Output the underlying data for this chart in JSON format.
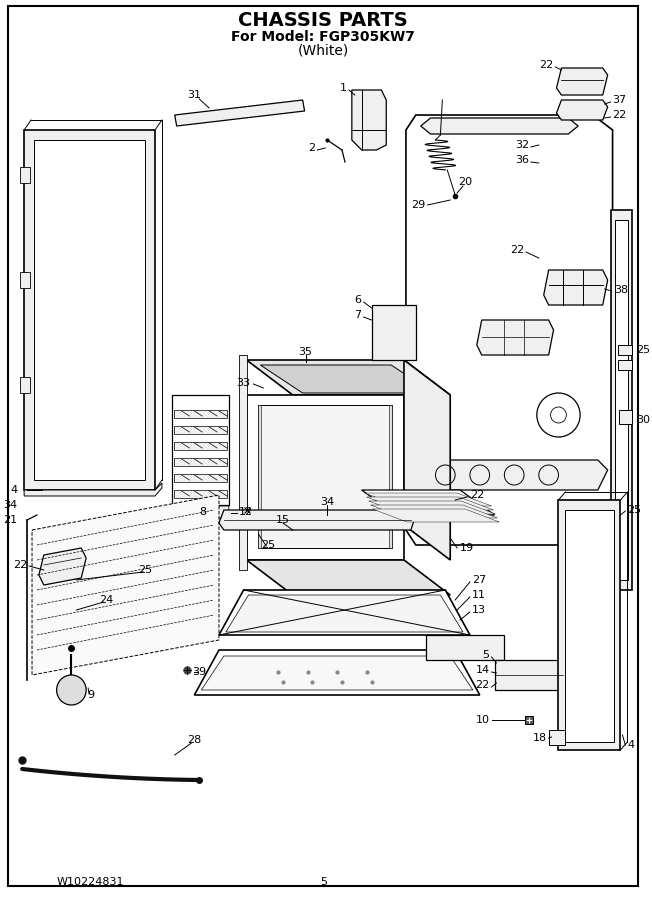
{
  "title_line1": "CHASSIS PARTS",
  "title_line2": "For Model: FGP305KW7",
  "title_line3": "(White)",
  "footer_left": "W10224831",
  "footer_center": "5",
  "bg_color": "#ffffff",
  "border_color": "#000000",
  "title_fontsize": 14,
  "subtitle_fontsize": 10,
  "footer_fontsize": 8,
  "fig_width": 6.52,
  "fig_height": 9.0,
  "dpi": 100
}
